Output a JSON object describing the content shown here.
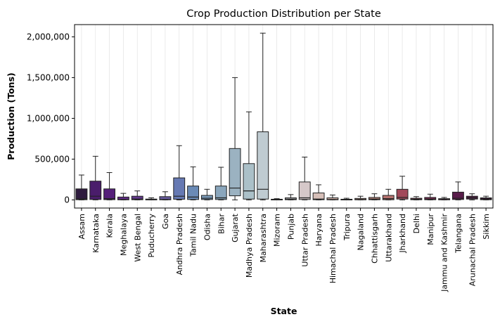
{
  "chart_data": {
    "type": "box",
    "title": "Crop Production Distribution per State",
    "xlabel": "State",
    "ylabel": "Production (Tons)",
    "ylim": [
      -100000,
      2150000
    ],
    "yticks": [
      0,
      500000,
      1000000,
      1500000,
      2000000
    ],
    "ytick_labels": [
      "0",
      "500,000",
      "1,000,000",
      "1,500,000",
      "2,000,000"
    ],
    "grid": "vertical-light",
    "boxes": [
      {
        "category": "Assam",
        "min": 0,
        "q1": 2000,
        "median": 12000,
        "q3": 135000,
        "max": 305000,
        "color": "#2e1a3e"
      },
      {
        "category": "Karnataka",
        "min": 0,
        "q1": 5000,
        "median": 45000,
        "q3": 230000,
        "max": 535000,
        "color": "#4a1d6b"
      },
      {
        "category": "Kerala",
        "min": 0,
        "q1": 3000,
        "median": 15000,
        "q3": 135000,
        "max": 335000,
        "color": "#551f7a"
      },
      {
        "category": "Meghalaya",
        "min": 0,
        "q1": 1000,
        "median": 5000,
        "q3": 35000,
        "max": 80000,
        "color": "#5e2a84"
      },
      {
        "category": "West Bengal",
        "min": 0,
        "q1": 2000,
        "median": 10000,
        "q3": 45000,
        "max": 110000,
        "color": "#62398c"
      },
      {
        "category": "Puducherry",
        "min": 0,
        "q1": 500,
        "median": 2000,
        "q3": 10000,
        "max": 25000,
        "color": "#634794"
      },
      {
        "category": "Goa",
        "min": 0,
        "q1": 1000,
        "median": 5000,
        "q3": 40000,
        "max": 100000,
        "color": "#645899"
      },
      {
        "category": "Andhra Pradesh",
        "min": 0,
        "q1": 8000,
        "median": 45000,
        "q3": 270000,
        "max": 665000,
        "color": "#6679b3"
      },
      {
        "category": "Tamil Nadu",
        "min": 0,
        "q1": 5000,
        "median": 35000,
        "q3": 170000,
        "max": 405000,
        "color": "#6a8ab6"
      },
      {
        "category": "Odisha",
        "min": 0,
        "q1": 5000,
        "median": 20000,
        "q3": 55000,
        "max": 130000,
        "color": "#7a9ab8"
      },
      {
        "category": "Bihar",
        "min": 0,
        "q1": 5000,
        "median": 25000,
        "q3": 170000,
        "max": 400000,
        "color": "#8aa6bc"
      },
      {
        "category": "Gujarat",
        "min": 0,
        "q1": 50000,
        "median": 145000,
        "q3": 630000,
        "max": 1500000,
        "color": "#9bb2c1"
      },
      {
        "category": "Madhya Pradesh",
        "min": 0,
        "q1": 10000,
        "median": 110000,
        "q3": 445000,
        "max": 1080000,
        "color": "#abc0c8"
      },
      {
        "category": "Maharashtra",
        "min": 0,
        "q1": 10000,
        "median": 130000,
        "q3": 835000,
        "max": 2045000,
        "color": "#bfcbd1"
      },
      {
        "category": "Mizoram",
        "min": 0,
        "q1": 500,
        "median": 2000,
        "q3": 8000,
        "max": 15000,
        "color": "#c9d1d6"
      },
      {
        "category": "Punjab",
        "min": 0,
        "q1": 2000,
        "median": 10000,
        "q3": 25000,
        "max": 65000,
        "color": "#d0d0d3"
      },
      {
        "category": "Uttar Pradesh",
        "min": 0,
        "q1": 5000,
        "median": 25000,
        "q3": 220000,
        "max": 525000,
        "color": "#d6c8c9"
      },
      {
        "category": "Haryana",
        "min": 0,
        "q1": 2000,
        "median": 10000,
        "q3": 85000,
        "max": 185000,
        "color": "#d6bfb8"
      },
      {
        "category": "Himachal Pradesh",
        "min": 0,
        "q1": 1000,
        "median": 5000,
        "q3": 25000,
        "max": 60000,
        "color": "#d0b1a8"
      },
      {
        "category": "Tripura",
        "min": 0,
        "q1": 500,
        "median": 2000,
        "q3": 8000,
        "max": 20000,
        "color": "#c9a49c"
      },
      {
        "category": "Nagaland",
        "min": 0,
        "q1": 1000,
        "median": 5000,
        "q3": 18000,
        "max": 45000,
        "color": "#c3968d"
      },
      {
        "category": "Chhattisgarh",
        "min": 0,
        "q1": 2000,
        "median": 10000,
        "q3": 30000,
        "max": 75000,
        "color": "#bf8a7e"
      },
      {
        "category": "Uttarakhand",
        "min": 0,
        "q1": 2000,
        "median": 15000,
        "q3": 55000,
        "max": 130000,
        "color": "#b87370"
      },
      {
        "category": "Jharkhand",
        "min": 0,
        "q1": 10000,
        "median": 30000,
        "q3": 130000,
        "max": 290000,
        "color": "#a2495a"
      },
      {
        "category": "Delhi",
        "min": 0,
        "q1": 2000,
        "median": 8000,
        "q3": 20000,
        "max": 40000,
        "color": "#913d58"
      },
      {
        "category": "Manipur",
        "min": 0,
        "q1": 2000,
        "median": 10000,
        "q3": 30000,
        "max": 70000,
        "color": "#7f2d56"
      },
      {
        "category": "Jammu and Kashmir",
        "min": 0,
        "q1": 1000,
        "median": 5000,
        "q3": 15000,
        "max": 30000,
        "color": "#6c2250"
      },
      {
        "category": "Telangana",
        "min": 0,
        "q1": 5000,
        "median": 20000,
        "q3": 95000,
        "max": 220000,
        "color": "#591c4a"
      },
      {
        "category": "Arunachal Pradesh",
        "min": 0,
        "q1": 10000,
        "median": 25000,
        "q3": 45000,
        "max": 75000,
        "color": "#4f1c43"
      },
      {
        "category": "Sikkim",
        "min": 0,
        "q1": 2000,
        "median": 10000,
        "q3": 25000,
        "max": 45000,
        "color": "#3d1a37"
      }
    ]
  }
}
